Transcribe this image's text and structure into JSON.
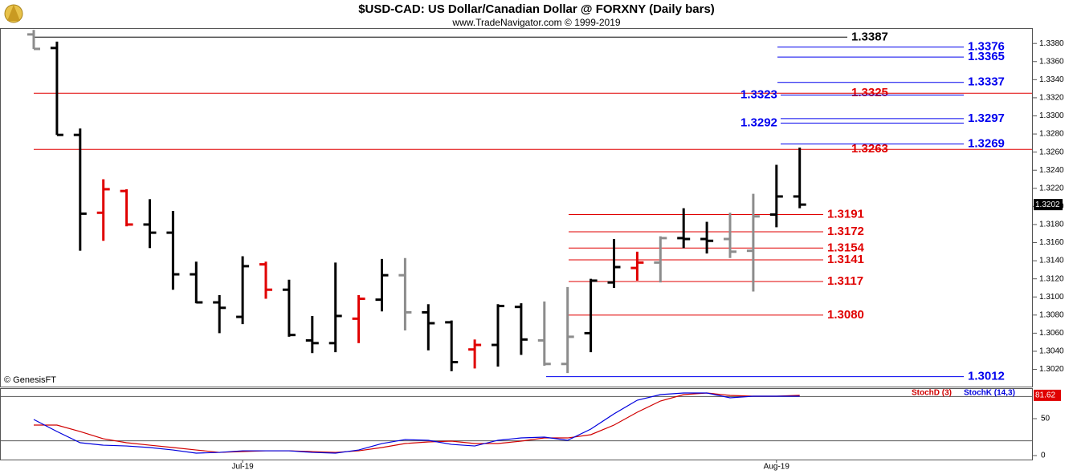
{
  "chart_data": [
    {
      "type": "ohlc",
      "title": "$USD-CAD:  US Dollar/Canadian Dollar @ FORXNY  (Daily bars)",
      "subtitle": "www.TradeNavigator.com © 1999-2019",
      "source": "© GenesisFT",
      "categories": [
        null,
        null,
        null,
        null,
        null,
        null,
        null,
        null,
        null,
        "Jul-19",
        null,
        null,
        null,
        null,
        null,
        null,
        null,
        null,
        null,
        null,
        null,
        null,
        null,
        null,
        null,
        null,
        null,
        null,
        null,
        null,
        null,
        null,
        "Aug-19",
        null
      ],
      "open": [
        1.339,
        1.3375,
        1.3279,
        1.3193,
        1.3217,
        1.318,
        1.3171,
        1.3125,
        1.3094,
        1.3078,
        1.3136,
        1.3108,
        1.3052,
        1.3049,
        1.3076,
        1.3097,
        1.3124,
        1.3083,
        1.3072,
        1.3042,
        1.3047,
        1.3089,
        1.3052,
        1.3026,
        1.306,
        1.3116,
        1.3132,
        1.3138,
        1.3165,
        1.3164,
        1.3164,
        1.3151,
        1.3191,
        1.3211
      ],
      "high": [
        1.3395,
        1.3382,
        1.3286,
        1.323,
        1.3219,
        1.3208,
        1.3195,
        1.3139,
        1.3102,
        1.3145,
        1.3139,
        1.3119,
        1.3079,
        1.3138,
        1.3102,
        1.3142,
        1.3143,
        1.3092,
        1.3074,
        1.3053,
        1.3092,
        1.3093,
        1.3095,
        1.3111,
        1.312,
        1.3164,
        1.315,
        1.3167,
        1.3198,
        1.3183,
        1.3193,
        1.3214,
        1.3246,
        1.3265
      ],
      "low": [
        1.3374,
        1.3279,
        1.3151,
        1.3162,
        1.3178,
        1.3154,
        1.3108,
        1.3093,
        1.306,
        1.307,
        1.3098,
        1.3056,
        1.3038,
        1.3039,
        1.3049,
        1.3084,
        1.3063,
        1.3041,
        1.3018,
        1.3021,
        1.3023,
        1.3036,
        1.3024,
        1.3016,
        1.3039,
        1.311,
        1.3118,
        1.3116,
        1.3154,
        1.3148,
        1.3143,
        1.3106,
        1.3177,
        1.3198
      ],
      "close": [
        1.3374,
        1.3279,
        1.3192,
        1.3219,
        1.318,
        1.3171,
        1.3125,
        1.3094,
        1.3088,
        1.3134,
        1.3108,
        1.3058,
        1.3049,
        1.3079,
        1.3098,
        1.3124,
        1.3083,
        1.3071,
        1.3028,
        1.3047,
        1.309,
        1.3053,
        1.3026,
        1.3056,
        1.3118,
        1.3133,
        1.3138,
        1.3165,
        1.3164,
        1.3162,
        1.315,
        1.3189,
        1.3211,
        1.3202
      ],
      "colors": [
        "#8c8c8c",
        "#000000",
        "#000000",
        "#e00000",
        "#e00000",
        "#000000",
        "#000000",
        "#000000",
        "#000000",
        "#000000",
        "#e00000",
        "#000000",
        "#000000",
        "#000000",
        "#e00000",
        "#000000",
        "#8c8c8c",
        "#000000",
        "#000000",
        "#e00000",
        "#000000",
        "#000000",
        "#8c8c8c",
        "#8c8c8c",
        "#000000",
        "#000000",
        "#e00000",
        "#8c8c8c",
        "#000000",
        "#000000",
        "#8c8c8c",
        "#8c8c8c",
        "#000000",
        "#000000"
      ],
      "current_price": 1.3202,
      "ylim": [
        1.3001,
        1.3397
      ],
      "yticks": [
        {
          "value": 1.302,
          "label": "1.3020"
        },
        {
          "value": 1.304,
          "label": "1.3040"
        },
        {
          "value": 1.306,
          "label": "1.3060"
        },
        {
          "value": 1.308,
          "label": "1.3080"
        },
        {
          "value": 1.31,
          "label": "1.3100"
        },
        {
          "value": 1.312,
          "label": "1.3120"
        },
        {
          "value": 1.314,
          "label": "1.3140"
        },
        {
          "value": 1.316,
          "label": "1.3160"
        },
        {
          "value": 1.318,
          "label": "1.3180"
        },
        {
          "value": 1.32,
          "label": "1.3200"
        },
        {
          "value": 1.322,
          "label": "1.3220"
        },
        {
          "value": 1.324,
          "label": "1.3240"
        },
        {
          "value": 1.326,
          "label": "1.3260"
        },
        {
          "value": 1.328,
          "label": "1.3280"
        },
        {
          "value": 1.33,
          "label": "1.3300"
        },
        {
          "value": 1.332,
          "label": "1.3320"
        },
        {
          "value": 1.334,
          "label": "1.3340"
        },
        {
          "value": 1.336,
          "label": "1.3360"
        },
        {
          "value": 1.338,
          "label": "1.3380"
        }
      ],
      "levels": [
        {
          "value": 1.3387,
          "color": "#000000"
        },
        {
          "value": 1.3376,
          "color": "#0000ee"
        },
        {
          "value": 1.3365,
          "color": "#0000ee"
        },
        {
          "value": 1.3337,
          "color": "#0000ee"
        },
        {
          "value": 1.3325,
          "color": "#e00000"
        },
        {
          "value": 1.3323,
          "color": "#0000ee"
        },
        {
          "value": 1.3297,
          "color": "#0000ee"
        },
        {
          "value": 1.3292,
          "color": "#0000ee"
        },
        {
          "value": 1.3269,
          "color": "#0000ee"
        },
        {
          "value": 1.3263,
          "color": "#e00000"
        },
        {
          "value": 1.3191,
          "color": "#e00000"
        },
        {
          "value": 1.3172,
          "color": "#e00000"
        },
        {
          "value": 1.3154,
          "color": "#e00000"
        },
        {
          "value": 1.3141,
          "color": "#e00000"
        },
        {
          "value": 1.3117,
          "color": "#e00000"
        },
        {
          "value": 1.308,
          "label": "1.3080",
          "color": "#e00000"
        },
        {
          "value": 1.3012,
          "color": "#0000ee"
        }
      ]
    },
    {
      "type": "line",
      "series": [
        {
          "name": "StochD (3)",
          "color": "#d00000",
          "values": [
            41.3,
            41.3,
            32.6,
            22.8,
            17.4,
            14.1,
            10.9,
            7.6,
            4.3,
            5.4,
            6.5,
            6.5,
            5.4,
            4.3,
            6.5,
            10.9,
            16.3,
            18.5,
            19.6,
            16.3,
            16.3,
            19.6,
            23.9,
            23.9,
            28.3,
            41.3,
            58.7,
            73.9,
            82.6,
            84.8,
            81.5,
            80.4,
            80.4,
            81.62
          ]
        },
        {
          "name": "StochK (14,3)",
          "color": "#0000dd",
          "values": [
            48.9,
            32.6,
            17.4,
            14.1,
            13.0,
            10.9,
            7.6,
            3.3,
            4.3,
            6.5,
            6.5,
            6.5,
            4.3,
            3.3,
            7.6,
            16.3,
            21.7,
            20.7,
            15.2,
            13.0,
            20.7,
            23.9,
            25.0,
            20.7,
            35.9,
            56.5,
            75.0,
            82.6,
            84.8,
            84.8,
            78.3,
            80.4,
            80.4,
            80.4
          ]
        }
      ],
      "current_value": 81.62,
      "ylim": [
        -5.4,
        91.3
      ],
      "yticks": [
        0,
        50
      ],
      "guide_lines": [
        20,
        80
      ]
    }
  ]
}
